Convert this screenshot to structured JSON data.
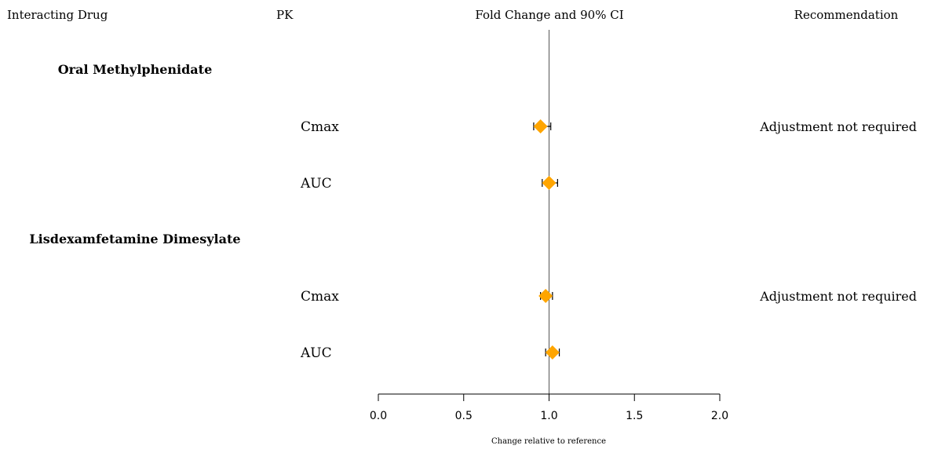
{
  "headers": {
    "drug": "Interacting Drug",
    "pk": "PK",
    "fold": "Fold Change and 90% CI",
    "recommendation": "Recommendation"
  },
  "chart_data": {
    "type": "forest",
    "xlabel": "Change relative to reference",
    "xlim": [
      0.0,
      2.0
    ],
    "xticks": [
      "0.0",
      "0.5",
      "1.0",
      "1.5",
      "2.0"
    ],
    "reference_line": 1.0,
    "marker_color": "#FFA500",
    "groups": [
      {
        "name": "Oral Methylphenidate",
        "rows": [
          {
            "pk": "Cmax",
            "estimate": 0.95,
            "lower": 0.91,
            "upper": 1.01,
            "recommendation": "Adjustment not required"
          },
          {
            "pk": "AUC",
            "estimate": 1.0,
            "lower": 0.96,
            "upper": 1.05,
            "recommendation": ""
          }
        ]
      },
      {
        "name": "Lisdexamfetamine Dimesylate",
        "rows": [
          {
            "pk": "Cmax",
            "estimate": 0.98,
            "lower": 0.95,
            "upper": 1.02,
            "recommendation": "Adjustment not required"
          },
          {
            "pk": "AUC",
            "estimate": 1.02,
            "lower": 0.98,
            "upper": 1.06,
            "recommendation": ""
          }
        ]
      }
    ]
  }
}
